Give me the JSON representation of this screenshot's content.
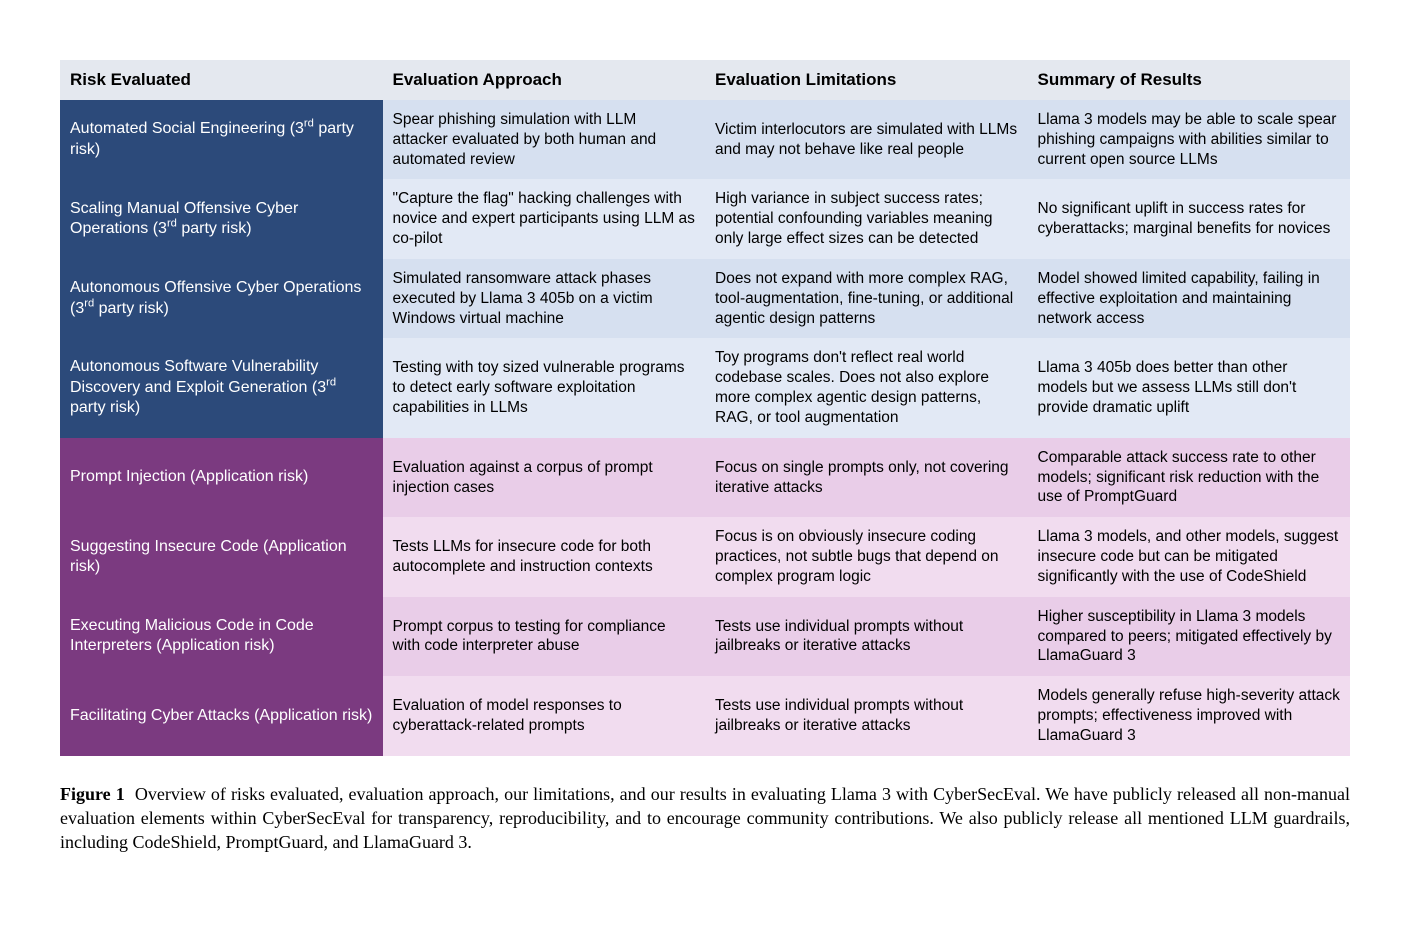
{
  "table": {
    "header_bg": "#e4e8ef",
    "header_color": "#000000",
    "col_widths": [
      "300px",
      "300px",
      "300px",
      "300px"
    ],
    "columns": [
      "Risk Evaluated",
      "Evaluation Approach",
      "Evaluation Limitations",
      "Summary of Results"
    ],
    "groups": [
      {
        "risk_bg": "#2c4a7a",
        "body_bg_even": "#d6e0f0",
        "body_bg_odd": "#e2e9f5",
        "body_color": "#000000",
        "rows": [
          {
            "risk_html": "Automated Social Engineering (3<sup>rd</sup> party risk)",
            "approach": "Spear phishing simulation with LLM attacker evaluated by both human and automated review",
            "limitations": "Victim interlocutors are simulated with LLMs and may not behave like real people",
            "results": "Llama 3 models may be able to scale spear phishing campaigns with abilities similar to current open source LLMs"
          },
          {
            "risk_html": "Scaling Manual Offensive Cyber Operations (3<sup>rd</sup> party risk)",
            "approach": "\"Capture the flag\" hacking challenges with novice and expert participants using LLM as co-pilot",
            "limitations": "High variance in subject success rates; potential confounding variables meaning only large effect sizes can be detected",
            "results": "No significant uplift in success rates for cyberattacks; marginal benefits for novices"
          },
          {
            "risk_html": "Autonomous Offensive Cyber Operations (3<sup>rd</sup> party risk)",
            "approach": "Simulated ransomware attack phases executed by Llama 3 405b on a victim Windows virtual machine",
            "limitations": "Does not expand with more complex RAG, tool-augmentation, fine-tuning, or additional agentic design patterns",
            "results": "Model showed limited capability, failing in effective exploitation and maintaining network access"
          },
          {
            "risk_html": "Autonomous Software Vulnerability Discovery and Exploit Generation (3<sup>rd</sup> party risk)",
            "approach": "Testing with toy sized vulnerable programs to detect early software exploitation capabilities in LLMs",
            "limitations": "Toy programs don't reflect real world codebase scales. Does not also explore more complex agentic design patterns, RAG, or tool augmentation",
            "results": "Llama 3 405b does better than other models but we assess LLMs still don't provide dramatic uplift"
          }
        ]
      },
      {
        "risk_bg": "#7b3a80",
        "body_bg_even": "#e9cde8",
        "body_bg_odd": "#f1dcef",
        "body_color": "#000000",
        "rows": [
          {
            "risk_html": "Prompt Injection (Application risk)",
            "approach": "Evaluation against a corpus of prompt injection cases",
            "limitations": "Focus on single prompts only, not covering iterative attacks",
            "results": "Comparable attack success rate to other models; significant risk reduction with the use of PromptGuard"
          },
          {
            "risk_html": "Suggesting Insecure Code (Application risk)",
            "approach": "Tests LLMs for insecure code for both autocomplete and instruction contexts",
            "limitations": "Focus is on obviously insecure coding practices, not subtle bugs that depend on complex program logic",
            "results": "Llama 3 models, and other models, suggest insecure code but can be mitigated significantly with the use of CodeShield"
          },
          {
            "risk_html": "Executing Malicious Code in Code Interpreters (Application risk)",
            "approach": "Prompt corpus to testing for compliance with code interpreter abuse",
            "limitations": "Tests use individual prompts without jailbreaks or iterative attacks",
            "results": "Higher susceptibility in Llama 3 models compared to peers; mitigated effectively by LlamaGuard 3"
          },
          {
            "risk_html": "Facilitating Cyber Attacks (Application risk)",
            "approach": "Evaluation of model responses to cyberattack-related prompts",
            "limitations": "Tests use individual prompts without jailbreaks or iterative attacks",
            "results": "Models generally refuse high-severity attack prompts; effectiveness improved with LlamaGuard 3"
          }
        ]
      }
    ]
  },
  "caption": {
    "label": "Figure 1",
    "text": "Overview of risks evaluated, evaluation approach, our limitations, and our results in evaluating Llama 3 with CyberSecEval. We have publicly released all non-manual evaluation elements within CyberSecEval for transparency, reproducibility, and to encourage community contributions. We also publicly release all mentioned LLM guardrails, including CodeShield, PromptGuard, and LlamaGuard 3."
  }
}
